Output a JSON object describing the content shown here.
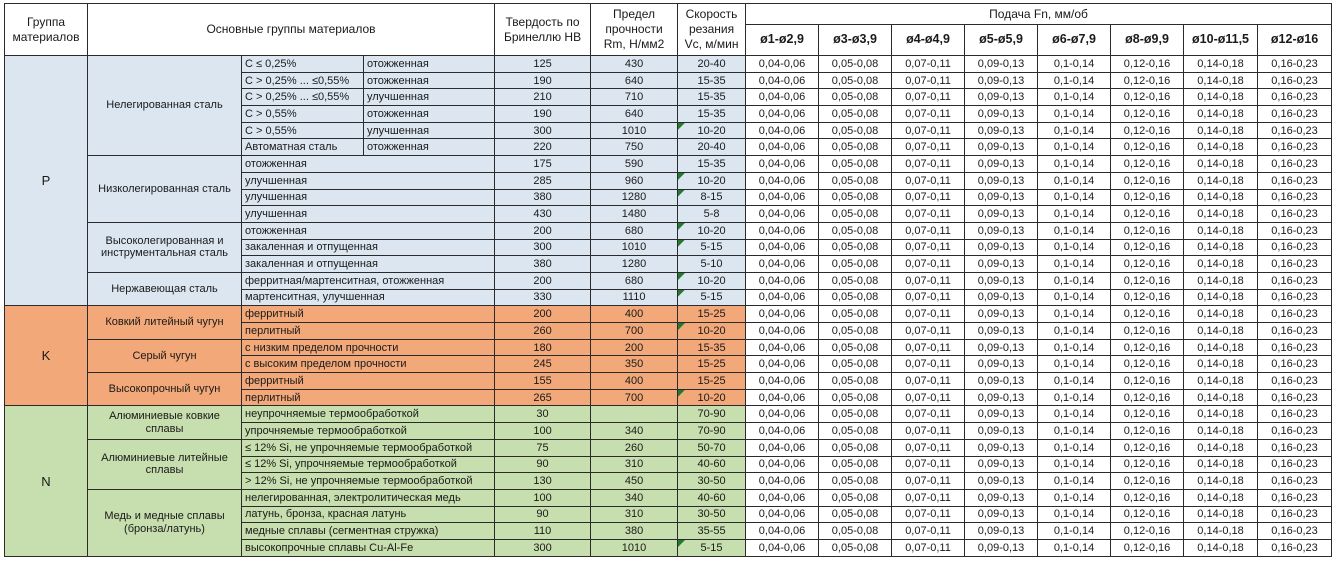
{
  "colors": {
    "group_p": "#DCE6F1",
    "group_k": "#F2A878",
    "group_n": "#C7DEAE",
    "feed_cell_bg": "#FFFFFF",
    "marker_green": "#217A2E"
  },
  "header": {
    "col_group": "Группа материалов",
    "col_main": "Основные группы материалов",
    "col_hardness": "Твердость по Бринеллю HB",
    "col_strength": "Предел прочности Rm, Н/мм2",
    "col_speed": "Скорость резания Vc, м/мин",
    "feed_title": "Подача Fn, мм/об",
    "feed_columns": [
      "ø1-ø2,9",
      "ø3-ø3,9",
      "ø4-ø4,9",
      "ø5-ø5,9",
      "ø6-ø7,9",
      "ø8-ø9,9",
      "ø10-ø11,5",
      "ø12-ø16"
    ]
  },
  "feed_values": [
    "0,04-0,06",
    "0,05-0,08",
    "0,07-0,11",
    "0,09-0,13",
    "0,1-0,14",
    "0,12-0,16",
    "0,14-0,18",
    "0,16-0,23"
  ],
  "groups": [
    {
      "letter": "P",
      "color_key": "group_p",
      "families": [
        {
          "name": "Нелегированная сталь",
          "rows": [
            {
              "sub1": "C ≤ 0,25%",
              "sub2": "отожженная",
              "hb": "125",
              "rm": "430",
              "vc": "20-40",
              "marker": false
            },
            {
              "sub1": "C > 0,25% ... ≤0,55%",
              "sub2": "отожженная",
              "hb": "190",
              "rm": "640",
              "vc": "15-35",
              "marker": false
            },
            {
              "sub1": "C > 0,25% ... ≤0,55%",
              "sub2": "улучшенная",
              "hb": "210",
              "rm": "710",
              "vc": "15-35",
              "marker": false
            },
            {
              "sub1": "C > 0,55%",
              "sub2": "отожженная",
              "hb": "190",
              "rm": "640",
              "vc": "15-35",
              "marker": false
            },
            {
              "sub1": "C > 0,55%",
              "sub2": "улучшенная",
              "hb": "300",
              "rm": "1010",
              "vc": "10-20",
              "marker": true
            },
            {
              "sub1": "Автоматная сталь",
              "sub2": "отожженная",
              "hb": "220",
              "rm": "750",
              "vc": "20-40",
              "marker": false
            }
          ]
        },
        {
          "name": "Низколегированная сталь",
          "rows": [
            {
              "sub": "отожженная",
              "hb": "175",
              "rm": "590",
              "vc": "15-35",
              "marker": false
            },
            {
              "sub": "улучшенная",
              "hb": "285",
              "rm": "960",
              "vc": "10-20",
              "marker": true
            },
            {
              "sub": "улучшенная",
              "hb": "380",
              "rm": "1280",
              "vc": "8-15",
              "marker": true
            },
            {
              "sub": "улучшенная",
              "hb": "430",
              "rm": "1480",
              "vc": "5-8",
              "marker": false
            }
          ]
        },
        {
          "name": "Высоколегированная и инструментальная сталь",
          "rows": [
            {
              "sub": "отожженная",
              "hb": "200",
              "rm": "680",
              "vc": "10-20",
              "marker": true
            },
            {
              "sub": "закаленная и отпущенная",
              "hb": "300",
              "rm": "1010",
              "vc": "5-15",
              "marker": true
            },
            {
              "sub": "закаленная и отпущенная",
              "hb": "380",
              "rm": "1280",
              "vc": "5-10",
              "marker": false
            }
          ]
        },
        {
          "name": "Нержавеющая сталь",
          "rows": [
            {
              "sub": "ферритная/мартенситная, отожженная",
              "hb": "200",
              "rm": "680",
              "vc": "10-20",
              "marker": true
            },
            {
              "sub": "мартенситная, улучшенная",
              "hb": "330",
              "rm": "1110",
              "vc": "5-15",
              "marker": true
            }
          ]
        }
      ]
    },
    {
      "letter": "K",
      "color_key": "group_k",
      "families": [
        {
          "name": "Ковкий литейный чугун",
          "rows": [
            {
              "sub": "ферритный",
              "hb": "200",
              "rm": "400",
              "vc": "15-25",
              "marker": false
            },
            {
              "sub": "перлитный",
              "hb": "260",
              "rm": "700",
              "vc": "10-20",
              "marker": true
            }
          ]
        },
        {
          "name": "Серый чугун",
          "rows": [
            {
              "sub": "с низким пределом прочности",
              "hb": "180",
              "rm": "200",
              "vc": "15-35",
              "marker": false
            },
            {
              "sub": "с высоким пределом прочности",
              "hb": "245",
              "rm": "350",
              "vc": "15-25",
              "marker": false
            }
          ]
        },
        {
          "name": "Высокопрочный чугун",
          "rows": [
            {
              "sub": "ферритный",
              "hb": "155",
              "rm": "400",
              "vc": "15-25",
              "marker": false
            },
            {
              "sub": "перлитный",
              "hb": "265",
              "rm": "700",
              "vc": "10-20",
              "marker": true
            }
          ]
        }
      ]
    },
    {
      "letter": "N",
      "color_key": "group_n",
      "families": [
        {
          "name": "Алюминиевые ковкие сплавы",
          "rows": [
            {
              "sub": "неупрочняемые термообработкой",
              "hb": "30",
              "rm": "",
              "vc": "70-90",
              "marker": false
            },
            {
              "sub": "упрочняемые термообработкой",
              "hb": "100",
              "rm": "340",
              "vc": "70-90",
              "marker": false
            }
          ]
        },
        {
          "name": "Алюминиевые литейные сплавы",
          "rows": [
            {
              "sub": "≤ 12% Si, не упрочняемые термообработкой",
              "hb": "75",
              "rm": "260",
              "vc": "50-70",
              "marker": false
            },
            {
              "sub": "≤ 12% Si, упрочняемые термообработкой",
              "hb": "90",
              "rm": "310",
              "vc": "40-60",
              "marker": false
            },
            {
              "sub": "> 12% Si, не упрочняемые термообработкой",
              "hb": "130",
              "rm": "450",
              "vc": "30-50",
              "marker": false
            }
          ]
        },
        {
          "name": "Медь и медные сплавы (бронза/латунь)",
          "rows": [
            {
              "sub": "нелегированная, электролитическая медь",
              "hb": "100",
              "rm": "340",
              "vc": "40-60",
              "marker": false
            },
            {
              "sub": "латунь, бронза, красная латунь",
              "hb": "90",
              "rm": "310",
              "vc": "30-50",
              "marker": false
            },
            {
              "sub": "медные сплавы (сегментная стружка)",
              "hb": "110",
              "rm": "380",
              "vc": "35-55",
              "marker": false
            },
            {
              "sub": "высокопрочные сплавы Cu-Al-Fe",
              "hb": "300",
              "rm": "1010",
              "vc": "5-15",
              "marker": true
            }
          ]
        }
      ]
    }
  ]
}
